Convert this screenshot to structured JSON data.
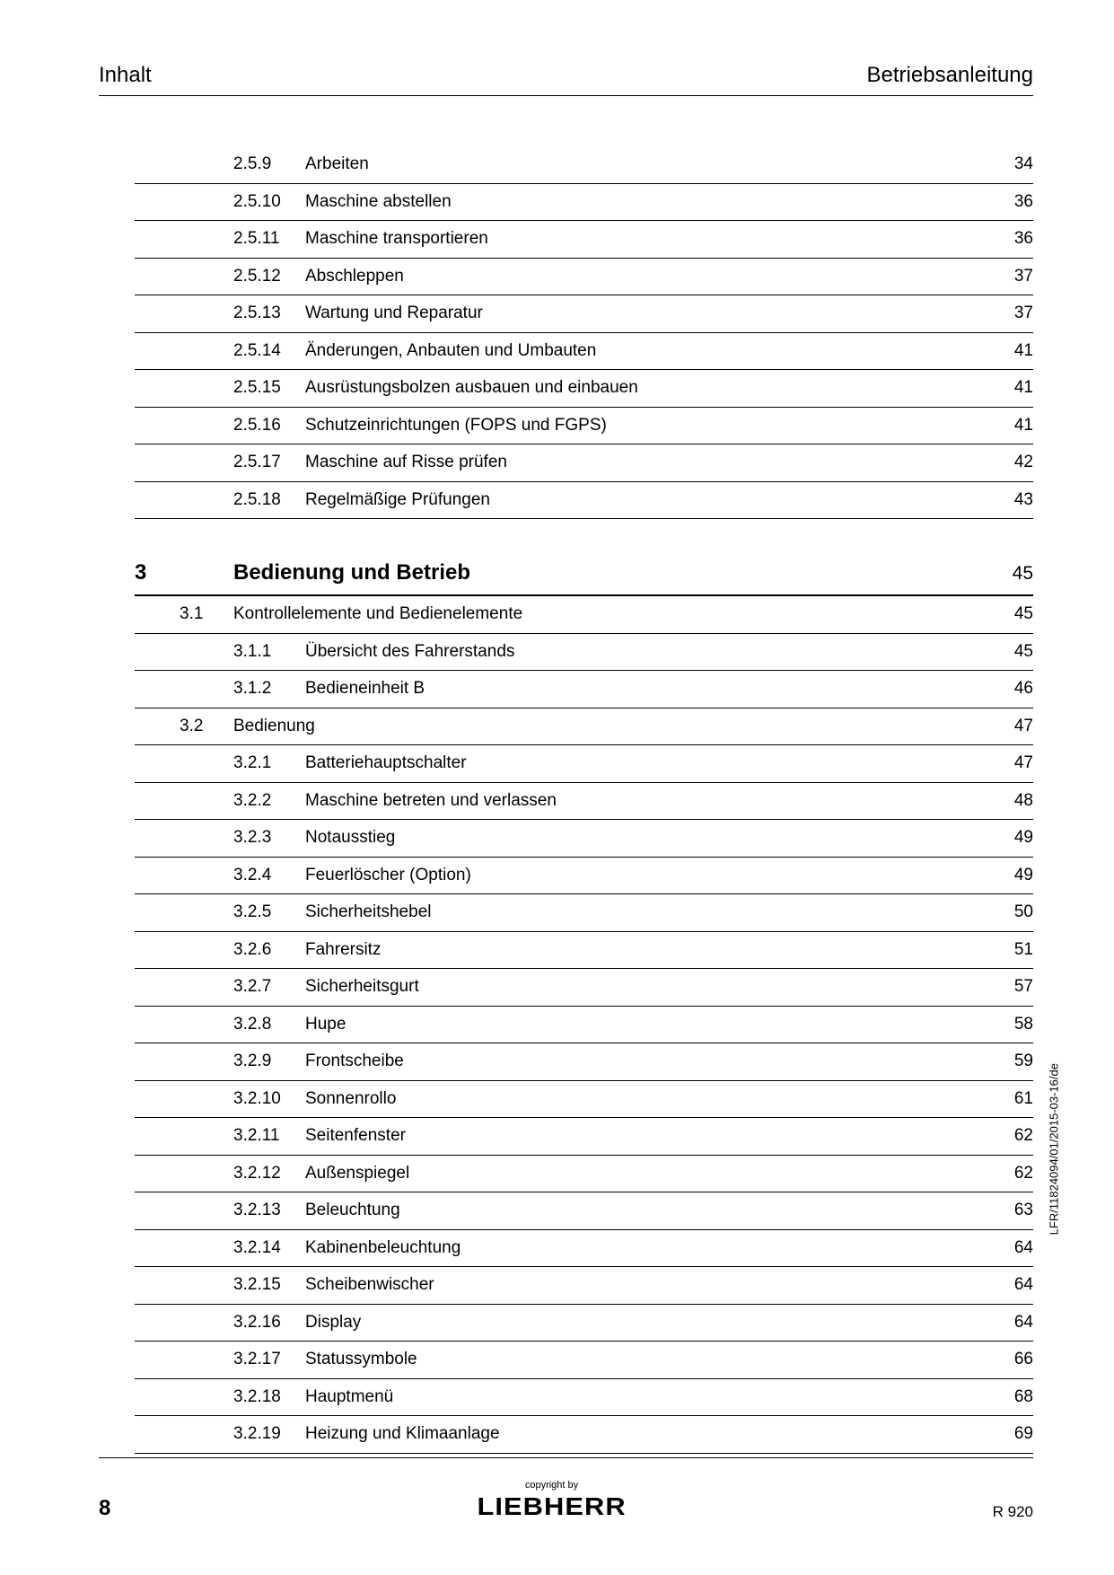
{
  "header": {
    "left": "Inhalt",
    "right": "Betriebsanleitung"
  },
  "toc": {
    "part1": [
      {
        "num": "2.5.9",
        "title": "Arbeiten",
        "page": "34"
      },
      {
        "num": "2.5.10",
        "title": "Maschine abstellen",
        "page": "36"
      },
      {
        "num": "2.5.11",
        "title": "Maschine transportieren",
        "page": "36"
      },
      {
        "num": "2.5.12",
        "title": "Abschleppen",
        "page": "37"
      },
      {
        "num": "2.5.13",
        "title": "Wartung und Reparatur",
        "page": "37"
      },
      {
        "num": "2.5.14",
        "title": "Änderungen, Anbauten und Umbauten",
        "page": "41"
      },
      {
        "num": "2.5.15",
        "title": "Ausrüstungsbolzen ausbauen und einbauen",
        "page": "41"
      },
      {
        "num": "2.5.16",
        "title": "Schutzeinrichtungen (FOPS und FGPS)",
        "page": "41"
      },
      {
        "num": "2.5.17",
        "title": "Maschine auf Risse prüfen",
        "page": "42"
      },
      {
        "num": "2.5.18",
        "title": "Regelmäßige Prüfungen",
        "page": "43"
      }
    ],
    "chapter": {
      "num": "3",
      "title": "Bedienung und Betrieb",
      "page": "45"
    },
    "section_3_1": {
      "num": "3.1",
      "title": "Kontrollelemente und Bedienelemente",
      "page": "45"
    },
    "sub_3_1": [
      {
        "num": "3.1.1",
        "title": "Übersicht des Fahrerstands",
        "page": "45"
      },
      {
        "num": "3.1.2",
        "title": "Bedieneinheit B",
        "page": "46"
      }
    ],
    "section_3_2": {
      "num": "3.2",
      "title": "Bedienung",
      "page": "47"
    },
    "sub_3_2": [
      {
        "num": "3.2.1",
        "title": "Batteriehauptschalter",
        "page": "47"
      },
      {
        "num": "3.2.2",
        "title": "Maschine betreten und verlassen",
        "page": "48"
      },
      {
        "num": "3.2.3",
        "title": "Notausstieg",
        "page": "49"
      },
      {
        "num": "3.2.4",
        "title": "Feuerlöscher (Option)",
        "page": "49"
      },
      {
        "num": "3.2.5",
        "title": "Sicherheitshebel",
        "page": "50"
      },
      {
        "num": "3.2.6",
        "title": "Fahrersitz",
        "page": "51"
      },
      {
        "num": "3.2.7",
        "title": "Sicherheitsgurt",
        "page": "57"
      },
      {
        "num": "3.2.8",
        "title": "Hupe",
        "page": "58"
      },
      {
        "num": "3.2.9",
        "title": "Frontscheibe",
        "page": "59"
      },
      {
        "num": "3.2.10",
        "title": "Sonnenrollo",
        "page": "61"
      },
      {
        "num": "3.2.11",
        "title": "Seitenfenster",
        "page": "62"
      },
      {
        "num": "3.2.12",
        "title": "Außenspiegel",
        "page": "62"
      },
      {
        "num": "3.2.13",
        "title": "Beleuchtung",
        "page": "63"
      },
      {
        "num": "3.2.14",
        "title": "Kabinenbeleuchtung",
        "page": "64"
      },
      {
        "num": "3.2.15",
        "title": "Scheibenwischer",
        "page": "64"
      },
      {
        "num": "3.2.16",
        "title": "Display",
        "page": "64"
      },
      {
        "num": "3.2.17",
        "title": "Statussymbole",
        "page": "66"
      },
      {
        "num": "3.2.18",
        "title": "Hauptmenü",
        "page": "68"
      },
      {
        "num": "3.2.19",
        "title": "Heizung und Klimaanlage",
        "page": "69"
      }
    ]
  },
  "footer": {
    "pagenum": "8",
    "copyright": "copyright by",
    "logo": "LIEBHERR",
    "model": "R 920"
  },
  "sidecode": "LFR/11824094/01/2015-03-16/de",
  "style": {
    "text_color": "#000000",
    "bg_color": "#ffffff",
    "body_fontsize": 19,
    "header_fontsize": 24,
    "chapter_fontsize": 24,
    "row_border": "1px solid #000",
    "chapter_border": "2px solid #000"
  }
}
